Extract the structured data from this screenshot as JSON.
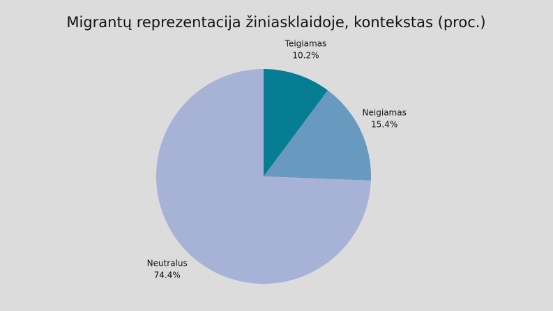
{
  "chart_data": {
    "type": "pie",
    "title": "Migrantų reprezentacija žiniasklaidoje, kontekstas (proc.)",
    "categories": [
      "Teigiamas",
      "Neigiamas",
      "Neutralus"
    ],
    "values": [
      10.2,
      15.4,
      74.4
    ],
    "value_labels": [
      "10.2%",
      "15.4%",
      "74.4%"
    ],
    "colors": [
      "#067d93",
      "#6899be",
      "#a6b2d6"
    ]
  }
}
